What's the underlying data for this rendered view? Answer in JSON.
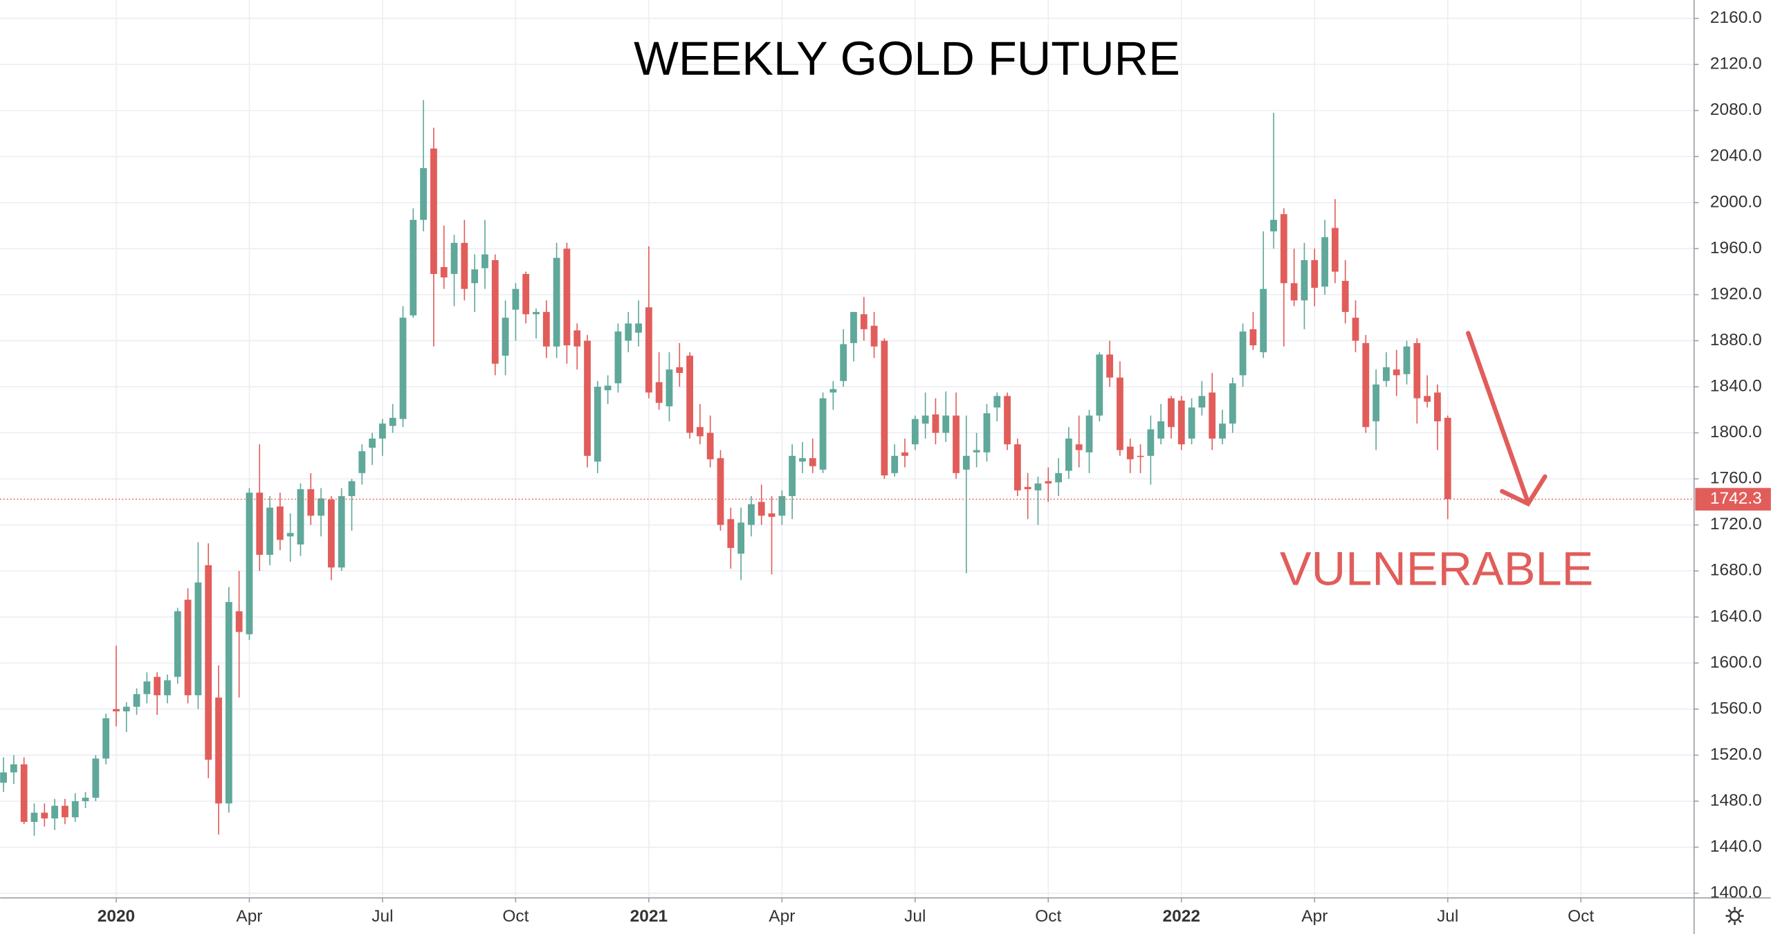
{
  "chart_data": {
    "type": "candlestick",
    "title": "WEEKLY GOLD FUTURE",
    "annotation": "VULNERABLE",
    "up_color": "#5fa89a",
    "down_color": "#e15d5a",
    "grid": true,
    "ylim": [
      1396,
      2176
    ],
    "yticks": [
      {
        "value": 1400,
        "label": "1400.0"
      },
      {
        "value": 1440,
        "label": "1440.0"
      },
      {
        "value": 1480,
        "label": "1480.0"
      },
      {
        "value": 1520,
        "label": "1520.0"
      },
      {
        "value": 1560,
        "label": "1560.0"
      },
      {
        "value": 1600,
        "label": "1600.0"
      },
      {
        "value": 1640,
        "label": "1640.0"
      },
      {
        "value": 1680,
        "label": "1680.0"
      },
      {
        "value": 1720,
        "label": "1720.0"
      },
      {
        "value": 1760,
        "label": "1760.0"
      },
      {
        "value": 1800,
        "label": "1800.0"
      },
      {
        "value": 1840,
        "label": "1840.0"
      },
      {
        "value": 1880,
        "label": "1880.0"
      },
      {
        "value": 1920,
        "label": "1920.0"
      },
      {
        "value": 1960,
        "label": "1960.0"
      },
      {
        "value": 2000,
        "label": "2000.0"
      },
      {
        "value": 2040,
        "label": "2040.0"
      },
      {
        "value": 2080,
        "label": "2080.0"
      },
      {
        "value": 2120,
        "label": "2120.0"
      },
      {
        "value": 2160,
        "label": "2160.0"
      }
    ],
    "xlim": [
      -0.33,
      165.05
    ],
    "xticks": [
      {
        "value": 11,
        "label": "2020"
      },
      {
        "value": 24,
        "label": "Apr"
      },
      {
        "value": 37,
        "label": "Jul"
      },
      {
        "value": 50,
        "label": "Oct"
      },
      {
        "value": 63,
        "label": "2021"
      },
      {
        "value": 76,
        "label": "Apr"
      },
      {
        "value": 89,
        "label": "Jul"
      },
      {
        "value": 102,
        "label": "Oct"
      },
      {
        "value": 115,
        "label": "2022"
      },
      {
        "value": 128,
        "label": "Apr"
      },
      {
        "value": 141,
        "label": "Jul"
      },
      {
        "value": 154,
        "label": "Oct"
      }
    ],
    "candles": [
      [
        1496,
        1518,
        1488,
        1505
      ],
      [
        1505,
        1520,
        1495,
        1512
      ],
      [
        1512,
        1518,
        1460,
        1462
      ],
      [
        1462,
        1478,
        1450,
        1470
      ],
      [
        1470,
        1478,
        1458,
        1465
      ],
      [
        1465,
        1482,
        1455,
        1476
      ],
      [
        1476,
        1482,
        1460,
        1466
      ],
      [
        1466,
        1487,
        1462,
        1480
      ],
      [
        1480,
        1488,
        1474,
        1483
      ],
      [
        1483,
        1520,
        1480,
        1517
      ],
      [
        1517,
        1556,
        1512,
        1552
      ],
      [
        1560,
        1615,
        1545,
        1558
      ],
      [
        1558,
        1566,
        1540,
        1562
      ],
      [
        1562,
        1578,
        1555,
        1573
      ],
      [
        1573,
        1592,
        1565,
        1584
      ],
      [
        1588,
        1592,
        1555,
        1572
      ],
      [
        1572,
        1590,
        1565,
        1585
      ],
      [
        1588,
        1648,
        1582,
        1645
      ],
      [
        1655,
        1665,
        1565,
        1572
      ],
      [
        1572,
        1705,
        1560,
        1670
      ],
      [
        1685,
        1704,
        1500,
        1516
      ],
      [
        1570,
        1598,
        1451,
        1478
      ],
      [
        1478,
        1666,
        1470,
        1653
      ],
      [
        1645,
        1680,
        1570,
        1627
      ],
      [
        1625,
        1752,
        1620,
        1748
      ],
      [
        1748,
        1790,
        1680,
        1694
      ],
      [
        1694,
        1745,
        1685,
        1735
      ],
      [
        1736,
        1748,
        1698,
        1707
      ],
      [
        1710,
        1730,
        1688,
        1713
      ],
      [
        1703,
        1756,
        1693,
        1751
      ],
      [
        1751,
        1765,
        1720,
        1728
      ],
      [
        1728,
        1752,
        1710,
        1743
      ],
      [
        1742,
        1745,
        1672,
        1683
      ],
      [
        1683,
        1752,
        1680,
        1745
      ],
      [
        1745,
        1760,
        1715,
        1758
      ],
      [
        1765,
        1790,
        1755,
        1784
      ],
      [
        1787,
        1800,
        1772,
        1795
      ],
      [
        1795,
        1812,
        1780,
        1808
      ],
      [
        1806,
        1825,
        1800,
        1813
      ],
      [
        1812,
        1910,
        1805,
        1900
      ],
      [
        1902,
        1995,
        1900,
        1985
      ],
      [
        1985,
        2089,
        1975,
        2030
      ],
      [
        2047,
        2065,
        1875,
        1938
      ],
      [
        1944,
        1980,
        1925,
        1935
      ],
      [
        1938,
        1972,
        1910,
        1965
      ],
      [
        1965,
        1985,
        1915,
        1925
      ],
      [
        1930,
        1955,
        1905,
        1942
      ],
      [
        1943,
        1985,
        1925,
        1955
      ],
      [
        1950,
        1955,
        1850,
        1860
      ],
      [
        1867,
        1915,
        1850,
        1900
      ],
      [
        1907,
        1930,
        1880,
        1925
      ],
      [
        1938,
        1940,
        1895,
        1903
      ],
      [
        1903,
        1908,
        1882,
        1905
      ],
      [
        1905,
        1915,
        1865,
        1875
      ],
      [
        1875,
        1965,
        1865,
        1952
      ],
      [
        1960,
        1965,
        1860,
        1876
      ],
      [
        1889,
        1895,
        1855,
        1875
      ],
      [
        1880,
        1885,
        1770,
        1780
      ],
      [
        1775,
        1845,
        1765,
        1840
      ],
      [
        1837,
        1850,
        1825,
        1841
      ],
      [
        1843,
        1895,
        1835,
        1888
      ],
      [
        1880,
        1905,
        1870,
        1895
      ],
      [
        1887,
        1915,
        1875,
        1895
      ],
      [
        1909,
        1962,
        1830,
        1835
      ],
      [
        1844,
        1870,
        1820,
        1826
      ],
      [
        1823,
        1870,
        1810,
        1855
      ],
      [
        1857,
        1878,
        1840,
        1852
      ],
      [
        1867,
        1870,
        1795,
        1800
      ],
      [
        1805,
        1825,
        1790,
        1797
      ],
      [
        1800,
        1815,
        1770,
        1777
      ],
      [
        1778,
        1785,
        1715,
        1720
      ],
      [
        1725,
        1735,
        1682,
        1700
      ],
      [
        1695,
        1735,
        1672,
        1722
      ],
      [
        1720,
        1745,
        1710,
        1738
      ],
      [
        1740,
        1755,
        1720,
        1728
      ],
      [
        1730,
        1745,
        1677,
        1727
      ],
      [
        1728,
        1750,
        1720,
        1745
      ],
      [
        1745,
        1790,
        1725,
        1780
      ],
      [
        1775,
        1792,
        1765,
        1778
      ],
      [
        1778,
        1795,
        1765,
        1771
      ],
      [
        1768,
        1835,
        1765,
        1830
      ],
      [
        1835,
        1845,
        1820,
        1838
      ],
      [
        1845,
        1890,
        1840,
        1877
      ],
      [
        1878,
        1905,
        1862,
        1905
      ],
      [
        1903,
        1918,
        1880,
        1890
      ],
      [
        1893,
        1905,
        1865,
        1875
      ],
      [
        1880,
        1882,
        1760,
        1763
      ],
      [
        1765,
        1790,
        1762,
        1780
      ],
      [
        1783,
        1795,
        1770,
        1780
      ],
      [
        1790,
        1815,
        1785,
        1812
      ],
      [
        1808,
        1835,
        1795,
        1815
      ],
      [
        1816,
        1830,
        1790,
        1800
      ],
      [
        1800,
        1836,
        1792,
        1815
      ],
      [
        1815,
        1835,
        1760,
        1765
      ],
      [
        1768,
        1815,
        1678,
        1780
      ],
      [
        1783,
        1800,
        1770,
        1785
      ],
      [
        1783,
        1825,
        1775,
        1817
      ],
      [
        1822,
        1835,
        1810,
        1832
      ],
      [
        1832,
        1835,
        1785,
        1790
      ],
      [
        1790,
        1795,
        1745,
        1750
      ],
      [
        1753,
        1765,
        1725,
        1751
      ],
      [
        1750,
        1762,
        1720,
        1756
      ],
      [
        1758,
        1770,
        1740,
        1756
      ],
      [
        1757,
        1778,
        1745,
        1765
      ],
      [
        1767,
        1805,
        1760,
        1795
      ],
      [
        1790,
        1815,
        1770,
        1785
      ],
      [
        1783,
        1820,
        1765,
        1815
      ],
      [
        1815,
        1870,
        1810,
        1868
      ],
      [
        1868,
        1880,
        1840,
        1848
      ],
      [
        1848,
        1862,
        1780,
        1785
      ],
      [
        1788,
        1795,
        1765,
        1777
      ],
      [
        1780,
        1790,
        1765,
        1779
      ],
      [
        1780,
        1815,
        1755,
        1803
      ],
      [
        1795,
        1825,
        1790,
        1810
      ],
      [
        1830,
        1832,
        1795,
        1805
      ],
      [
        1828,
        1832,
        1785,
        1790
      ],
      [
        1795,
        1830,
        1790,
        1822
      ],
      [
        1822,
        1845,
        1815,
        1832
      ],
      [
        1835,
        1852,
        1785,
        1795
      ],
      [
        1795,
        1820,
        1790,
        1808
      ],
      [
        1808,
        1848,
        1800,
        1843
      ],
      [
        1850,
        1895,
        1840,
        1888
      ],
      [
        1890,
        1905,
        1872,
        1876
      ],
      [
        1870,
        1975,
        1865,
        1925
      ],
      [
        1975,
        2078,
        1960,
        1985
      ],
      [
        1990,
        1995,
        1875,
        1930
      ],
      [
        1930,
        1960,
        1910,
        1915
      ],
      [
        1915,
        1965,
        1890,
        1950
      ],
      [
        1950,
        1960,
        1910,
        1926
      ],
      [
        1927,
        1985,
        1920,
        1970
      ],
      [
        1978,
        2003,
        1930,
        1940
      ],
      [
        1932,
        1950,
        1895,
        1905
      ],
      [
        1900,
        1915,
        1870,
        1880
      ],
      [
        1878,
        1885,
        1800,
        1805
      ],
      [
        1810,
        1855,
        1785,
        1842
      ],
      [
        1845,
        1870,
        1840,
        1857
      ],
      [
        1855,
        1872,
        1832,
        1850
      ],
      [
        1851,
        1880,
        1842,
        1875
      ],
      [
        1878,
        1882,
        1808,
        1830
      ],
      [
        1832,
        1850,
        1822,
        1827
      ],
      [
        1835,
        1842,
        1785,
        1810
      ],
      [
        1813,
        1815,
        1725,
        1742.3
      ]
    ]
  }
}
